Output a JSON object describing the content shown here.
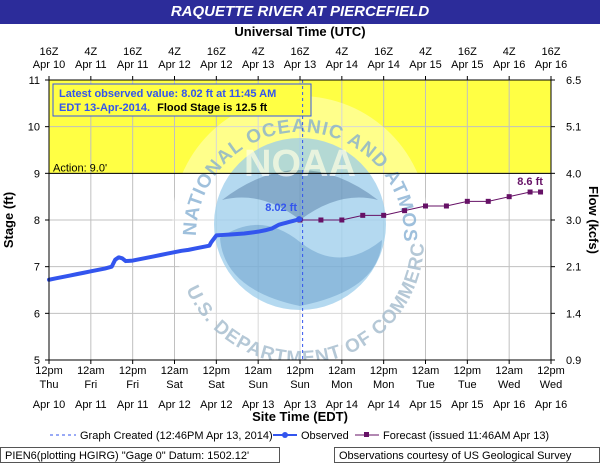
{
  "title": "RAQUETTE RIVER AT PIERCEFIELD",
  "chart_data": {
    "type": "line",
    "top_axis_title": "Universal Time (UTC)",
    "top_ticks": [
      {
        "l1": "16Z",
        "l2": "Apr 10"
      },
      {
        "l1": "4Z",
        "l2": "Apr 11"
      },
      {
        "l1": "16Z",
        "l2": "Apr 11"
      },
      {
        "l1": "4Z",
        "l2": "Apr 12"
      },
      {
        "l1": "16Z",
        "l2": "Apr 12"
      },
      {
        "l1": "4Z",
        "l2": "Apr 13"
      },
      {
        "l1": "16Z",
        "l2": "Apr 13"
      },
      {
        "l1": "4Z",
        "l2": "Apr 14"
      },
      {
        "l1": "16Z",
        "l2": "Apr 14"
      },
      {
        "l1": "4Z",
        "l2": "Apr 15"
      },
      {
        "l1": "16Z",
        "l2": "Apr 15"
      },
      {
        "l1": "4Z",
        "l2": "Apr 16"
      },
      {
        "l1": "16Z",
        "l2": "Apr 16"
      }
    ],
    "bottom_axis_title": "Site Time (EDT)",
    "bottom_ticks": [
      {
        "l1": "12pm",
        "l2": "Thu",
        "l3": "Apr 10"
      },
      {
        "l1": "12am",
        "l2": "Fri",
        "l3": "Apr 11"
      },
      {
        "l1": "12pm",
        "l2": "Fri",
        "l3": "Apr 11"
      },
      {
        "l1": "12am",
        "l2": "Sat",
        "l3": "Apr 12"
      },
      {
        "l1": "12pm",
        "l2": "Sat",
        "l3": "Apr 12"
      },
      {
        "l1": "12am",
        "l2": "Sun",
        "l3": "Apr 13"
      },
      {
        "l1": "12pm",
        "l2": "Sun",
        "l3": "Apr 13"
      },
      {
        "l1": "12am",
        "l2": "Mon",
        "l3": "Apr 14"
      },
      {
        "l1": "12pm",
        "l2": "Mon",
        "l3": "Apr 14"
      },
      {
        "l1": "12am",
        "l2": "Tue",
        "l3": "Apr 15"
      },
      {
        "l1": "12pm",
        "l2": "Tue",
        "l3": "Apr 15"
      },
      {
        "l1": "12am",
        "l2": "Wed",
        "l3": "Apr 16"
      },
      {
        "l1": "12pm",
        "l2": "Wed",
        "l3": "Apr 16"
      }
    ],
    "ylabel_left": "Stage (ft)",
    "ylim": [
      5,
      11
    ],
    "left_ticks": [
      "5",
      "6",
      "7",
      "8",
      "9",
      "10",
      "11"
    ],
    "ylabel_right": "Flow (kcfs)",
    "right_ticks": [
      {
        "stage": 5.0,
        "label": "0.9"
      },
      {
        "stage": 6.0,
        "label": "1.4"
      },
      {
        "stage": 7.0,
        "label": "2.1"
      },
      {
        "stage": 8.0,
        "label": "3.0"
      },
      {
        "stage": 9.0,
        "label": "4.0"
      },
      {
        "stage": 10.0,
        "label": "5.1"
      },
      {
        "stage": 11.0,
        "label": "6.5"
      }
    ],
    "x_range_hours_since_apr10_12pm": [
      0,
      144
    ],
    "flood_band": {
      "from": 9.0,
      "to": 11.0,
      "color": "#ffff44"
    },
    "action_label": "Action: 9.0'",
    "info_line1": "Latest observed value: 8.02 ft at 11:45 AM",
    "info_line2a": "EDT 13-Apr-2014.",
    "info_line2b": "Flood Stage is 12.5 ft",
    "observed_label": "8.02 ft",
    "forecast_label": "8.6 ft",
    "graph_created_hour": 72.75,
    "series": [
      {
        "name": "Observed",
        "color": "#3355ee",
        "x": [
          0,
          2,
          4,
          6,
          8,
          10,
          12,
          14,
          16,
          18,
          19,
          20,
          21,
          22,
          24,
          26,
          28,
          30,
          32,
          34,
          36,
          38,
          40,
          42,
          44,
          46,
          46.5,
          48,
          50,
          52,
          54,
          56,
          58,
          60,
          62,
          64,
          65,
          66,
          67,
          68,
          69,
          70,
          71,
          71.75
        ],
        "y": [
          6.72,
          6.75,
          6.78,
          6.81,
          6.84,
          6.87,
          6.9,
          6.93,
          6.96,
          7.0,
          7.15,
          7.2,
          7.18,
          7.12,
          7.13,
          7.16,
          7.19,
          7.22,
          7.25,
          7.28,
          7.31,
          7.34,
          7.36,
          7.39,
          7.42,
          7.45,
          7.52,
          7.67,
          7.68,
          7.69,
          7.7,
          7.71,
          7.73,
          7.75,
          7.78,
          7.82,
          7.86,
          7.9,
          7.92,
          7.94,
          7.96,
          7.98,
          8.0,
          8.02
        ]
      },
      {
        "name": "Forecast (issued 11:46AM Apr 13)",
        "color": "#661166",
        "x": [
          72,
          78,
          84,
          90,
          96,
          102,
          108,
          114,
          120,
          126,
          132,
          138,
          141
        ],
        "y": [
          8.0,
          8.0,
          8.0,
          8.1,
          8.1,
          8.2,
          8.3,
          8.3,
          8.4,
          8.4,
          8.5,
          8.6,
          8.6
        ]
      }
    ],
    "legend": {
      "created": "Graph Created (12:46PM Apr 13, 2014)",
      "observed": "Observed",
      "forecast": "Forecast (issued 11:46AM Apr 13)"
    },
    "watermark": {
      "center_text": "NOAA",
      "ring_top": "NATIONAL OCEANIC AND ATMOSPHERIC ADMINISTRATION",
      "ring_bottom": "U.S. DEPARTMENT OF COMMERCE"
    }
  },
  "footer": {
    "left": "PIEN6(plotting HGIRG) \"Gage 0\" Datum: 1502.12'",
    "right": "Observations courtesy of US Geological Survey"
  }
}
